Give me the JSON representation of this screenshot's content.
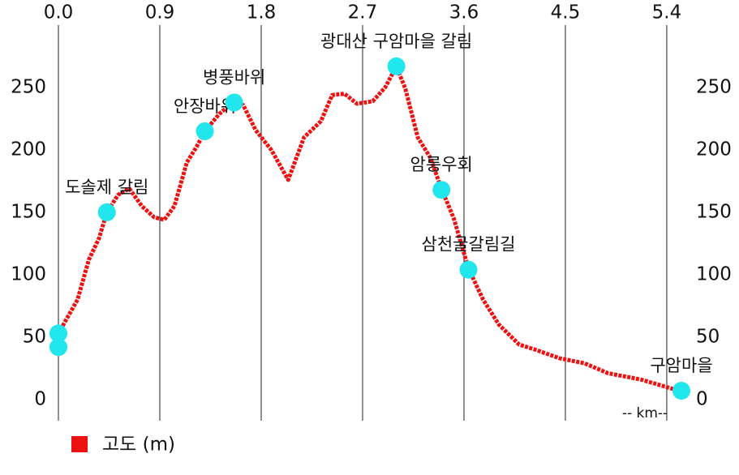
{
  "chart_data": {
    "type": "line",
    "xlabel": "-- km--",
    "x": [
      0,
      0,
      0.17,
      0.27,
      0.36,
      0.43,
      0.53,
      0.63,
      0.74,
      0.85,
      0.94,
      1.03,
      1.14,
      1.23,
      1.3,
      1.43,
      1.56,
      1.64,
      1.75,
      1.89,
      2.04,
      2.18,
      2.33,
      2.43,
      2.54,
      2.65,
      2.79,
      2.9,
      3.0,
      3.08,
      3.19,
      3.3,
      3.4,
      3.51,
      3.64,
      3.77,
      3.91,
      4.09,
      4.23,
      4.45,
      4.67,
      4.88,
      5.17,
      5.51
    ],
    "series": [
      {
        "name": "고도 (m)",
        "color": "#ee1111",
        "values": [
          42,
          53,
          80,
          112,
          129,
          150,
          164,
          169,
          155,
          146,
          144,
          155,
          190,
          203,
          215,
          229,
          239,
          236,
          216,
          200,
          176,
          210,
          223,
          244,
          245,
          237,
          239,
          250,
          267,
          249,
          210,
          194,
          169,
          145,
          105,
          80,
          60,
          44,
          40,
          33,
          29,
          21,
          16,
          7
        ]
      }
    ],
    "markers": {
      "color": "#22e6ee",
      "x": [
        0,
        0,
        0.43,
        1.3,
        1.56,
        3.0,
        3.4,
        3.64,
        5.53
      ],
      "y": [
        42,
        53,
        150,
        215,
        238,
        267,
        168,
        104,
        7
      ],
      "labels": [
        null,
        null,
        "도솔제 갈림",
        "안장바위",
        "병풍바위",
        "광대산 구암마을 갈림",
        "암릉우회",
        "삼천굴갈림길",
        "구암마을"
      ]
    },
    "xlim": [
      0,
      5.53
    ],
    "ylim": [
      -17,
      300
    ],
    "xticks": [
      {
        "value": 0,
        "label": "0.0"
      },
      0.9,
      1.8,
      2.7,
      3.6,
      4.5,
      5.4
    ],
    "yticks": [
      0,
      50,
      100,
      150,
      200,
      250
    ],
    "grid": "x",
    "legend": "bottom-left"
  }
}
